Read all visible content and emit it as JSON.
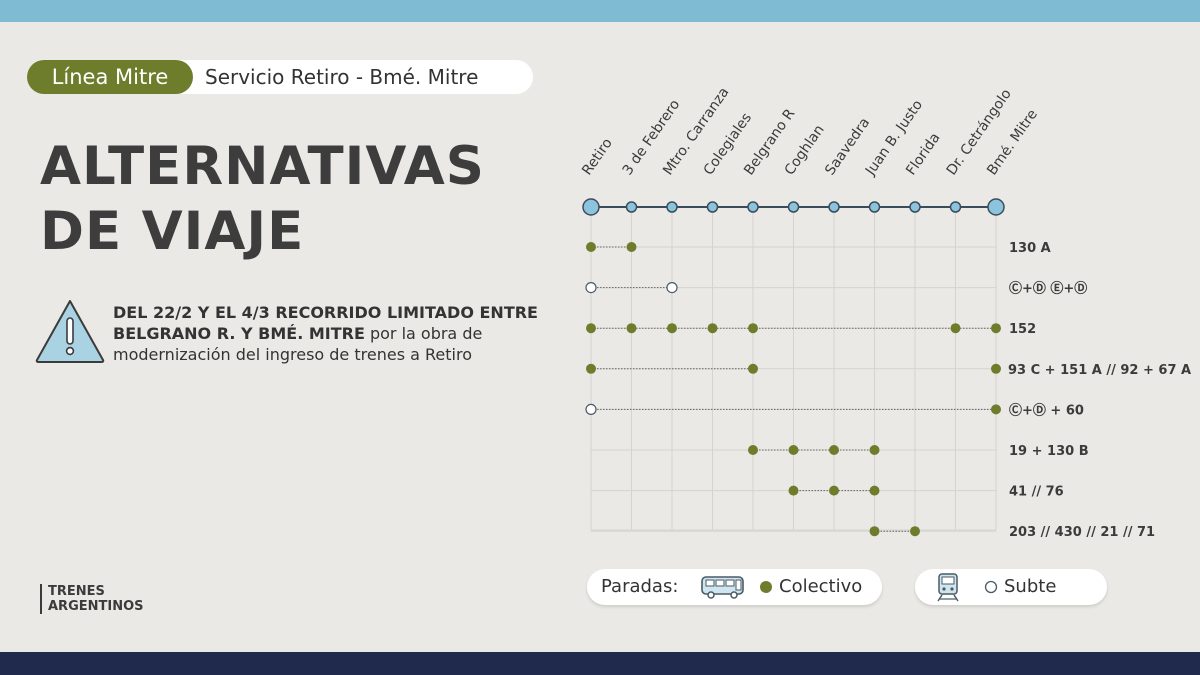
{
  "header": {
    "line_label": "Línea Mitre",
    "service": "Servicio Retiro - Bmé. Mitre"
  },
  "title": {
    "line1": "ALTERNATIVAS",
    "line2": "DE VIAJE"
  },
  "notice": {
    "bold": "DEL 22/2 Y EL 4/3 RECORRIDO LIMITADO ENTRE BELGRANO R. Y BMÉ. MITRE",
    "normal": " por la obra de modernización del ingreso de trenes a Retiro"
  },
  "logo": {
    "line1": "TRENES",
    "line2": "ARGENTINOS"
  },
  "stations": [
    "Retiro",
    "3 de Febrero",
    "Mtro. Carranza",
    "Colegiales",
    "Belgrano R",
    "Coghlan",
    "Saavedra",
    "Juan B. Justo",
    "Florida",
    "Dr. Cetrángolo",
    "Bmé. Mitre"
  ],
  "routes": [
    {
      "label": "130 A",
      "stops": [
        {
          "s": 0,
          "t": "bus"
        },
        {
          "s": 1,
          "t": "bus"
        }
      ],
      "links": [
        [
          0,
          1
        ]
      ]
    },
    {
      "label": "Ⓒ+Ⓓ   Ⓔ+Ⓓ",
      "stops": [
        {
          "s": 0,
          "t": "subte"
        },
        {
          "s": 2,
          "t": "subte"
        }
      ],
      "links": [
        [
          0,
          2
        ]
      ]
    },
    {
      "label": "152",
      "stops": [
        {
          "s": 0,
          "t": "bus"
        },
        {
          "s": 1,
          "t": "bus"
        },
        {
          "s": 2,
          "t": "bus"
        },
        {
          "s": 3,
          "t": "bus"
        },
        {
          "s": 4,
          "t": "bus"
        },
        {
          "s": 9,
          "t": "bus"
        },
        {
          "s": 10,
          "t": "bus"
        }
      ],
      "links": [
        [
          0,
          10
        ]
      ]
    },
    {
      "label": "93 C + 151 A // 92 + 67 A",
      "stops": [
        {
          "s": 0,
          "t": "bus"
        },
        {
          "s": 4,
          "t": "bus"
        },
        {
          "s": 10,
          "t": "bus"
        }
      ],
      "links": [
        [
          0,
          4
        ]
      ]
    },
    {
      "label": "Ⓒ+Ⓓ + 60",
      "stops": [
        {
          "s": 0,
          "t": "subte"
        },
        {
          "s": 10,
          "t": "bus"
        }
      ],
      "links": [
        [
          0,
          10
        ]
      ]
    },
    {
      "label": "19 + 130 B",
      "stops": [
        {
          "s": 4,
          "t": "bus"
        },
        {
          "s": 5,
          "t": "bus"
        },
        {
          "s": 6,
          "t": "bus"
        },
        {
          "s": 7,
          "t": "bus"
        }
      ],
      "links": [
        [
          4,
          7
        ]
      ]
    },
    {
      "label": "41 // 76",
      "stops": [
        {
          "s": 5,
          "t": "bus"
        },
        {
          "s": 6,
          "t": "bus"
        },
        {
          "s": 7,
          "t": "bus"
        }
      ],
      "links": [
        [
          5,
          7
        ]
      ]
    },
    {
      "label": "203 // 430 // 21 // 71",
      "stops": [
        {
          "s": 7,
          "t": "bus"
        },
        {
          "s": 8,
          "t": "bus"
        }
      ],
      "links": [
        [
          7,
          8
        ]
      ]
    }
  ],
  "legend": {
    "prefix": "Paradas:",
    "bus_label": "Colectivo",
    "subte_label": "Subte"
  },
  "colors": {
    "bus": "#6e7d2c",
    "line": "#3a4c5c",
    "node_fill": "#8bc4dc",
    "grid": "#d5d3cf"
  }
}
